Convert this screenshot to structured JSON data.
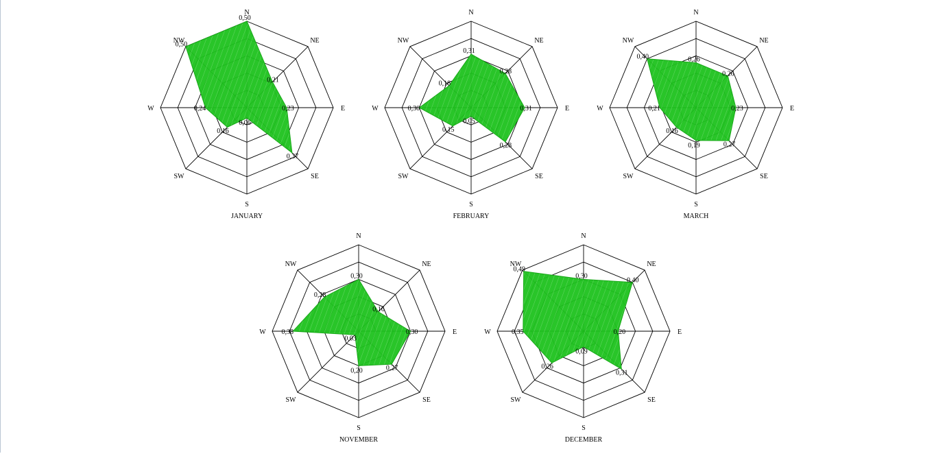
{
  "directions": [
    "N",
    "NE",
    "E",
    "SE",
    "S",
    "SW",
    "W",
    "NW"
  ],
  "colors": {
    "fill": "#1ec21e",
    "stroke": "#18a818",
    "hatch": "#8be08b",
    "grid": "#000000"
  },
  "chart_data": [
    {
      "type": "radar",
      "title": "JANUARY",
      "categories": [
        "N",
        "NE",
        "E",
        "SE",
        "S",
        "SW",
        "W",
        "NW"
      ],
      "values": [
        0.5,
        0.21,
        0.23,
        0.37,
        0.06,
        0.16,
        0.24,
        0.5
      ],
      "value_labels": [
        "0,50",
        "0,21",
        "0,23",
        "0,37",
        "0,06",
        "0,16",
        "0,24",
        "0,50"
      ],
      "rlim": [
        0,
        0.5
      ],
      "rings": 5
    },
    {
      "type": "radar",
      "title": "FEBRUARY",
      "categories": [
        "N",
        "NE",
        "E",
        "SE",
        "S",
        "SW",
        "W",
        "NW"
      ],
      "values": [
        0.31,
        0.28,
        0.31,
        0.28,
        0.05,
        0.15,
        0.3,
        0.18
      ],
      "value_labels": [
        "0,31",
        "0,28",
        "0,31",
        "0,28",
        "0,05",
        "0,15",
        "0,30",
        "0,18"
      ],
      "rlim": [
        0,
        0.5
      ],
      "rings": 5
    },
    {
      "type": "radar",
      "title": "MARCH",
      "categories": [
        "N",
        "NE",
        "E",
        "SE",
        "S",
        "SW",
        "W",
        "NW"
      ],
      "values": [
        0.26,
        0.26,
        0.23,
        0.27,
        0.19,
        0.16,
        0.21,
        0.4
      ],
      "value_labels": [
        "0,26",
        "0,26",
        "0,23",
        "0,27",
        "0,19",
        "0,16",
        "0,21",
        "0,40"
      ],
      "rlim": [
        0,
        0.5
      ],
      "rings": 5
    },
    {
      "type": "radar",
      "title": "NOVEMBER",
      "categories": [
        "N",
        "NE",
        "E",
        "SE",
        "S",
        "SW",
        "W",
        "NW"
      ],
      "values": [
        0.3,
        0.16,
        0.3,
        0.27,
        0.2,
        0.03,
        0.38,
        0.28
      ],
      "value_labels": [
        "0,30",
        "0,16",
        "0,30",
        "0,27",
        "0,20",
        "0,03",
        "0,38",
        "0,28"
      ],
      "rlim": [
        0,
        0.5
      ],
      "rings": 5
    },
    {
      "type": "radar",
      "title": "DECEMBER",
      "categories": [
        "N",
        "NE",
        "E",
        "SE",
        "S",
        "SW",
        "W",
        "NW"
      ],
      "values": [
        0.3,
        0.4,
        0.2,
        0.31,
        0.09,
        0.26,
        0.35,
        0.49
      ],
      "value_labels": [
        "0,30",
        "0,40",
        "0,20",
        "0,31",
        "0,09",
        "0,26",
        "0,35",
        "0,49"
      ],
      "rlim": [
        0,
        0.5
      ],
      "rings": 5
    }
  ]
}
